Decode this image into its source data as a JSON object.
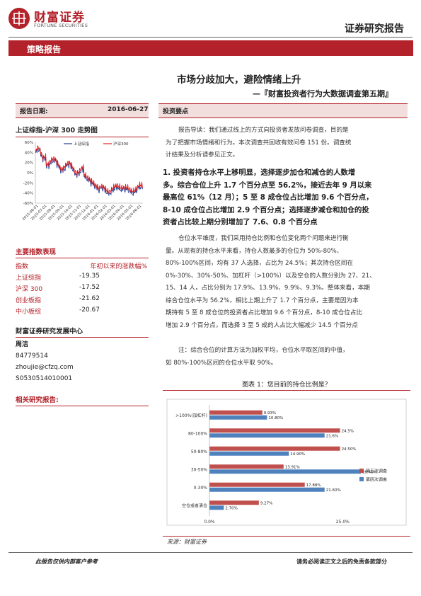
{
  "header": {
    "company_cn": "财富证券",
    "company_en": "FORTUNE SECURITIES",
    "report_type": "证券研究报告"
  },
  "banner": {
    "label": "策略报告"
  },
  "title": "市场分歧加大，避险情绪上升",
  "subtitle": "—『财富投资者行为大数据调查第五期』",
  "sidebar": {
    "date_label": "报告日期:",
    "date_value": "2016-06-27",
    "trend_title": "上证综指-沪深 300 走势图",
    "trend_chart": {
      "legend": [
        "上证综指",
        "沪深300"
      ],
      "yticks": [
        "60%",
        "40%",
        "20%",
        "0%",
        "-20%",
        "-40%",
        "-60%"
      ],
      "xticks": [
        "2015-06-01",
        "2015-07-01",
        "2015-08-01",
        "2015-09-01",
        "2015-10-01",
        "2015-11-01",
        "2015-12-01",
        "2016-01-01",
        "2016-02-01",
        "2016-03-01",
        "2016-04-01",
        "2016-05-01",
        "2016-06-01"
      ],
      "colors": {
        "sh": "#1f3f9a",
        "hs300": "#e02020"
      }
    },
    "indices": {
      "title": "主要指数表现",
      "header": [
        "指数",
        "年初以来的涨跌幅%"
      ],
      "rows": [
        {
          "name": "上证综指",
          "value": "-19.35"
        },
        {
          "name": "沪深 300",
          "value": "-17.52"
        },
        {
          "name": "创业板指",
          "value": "-21.62"
        },
        {
          "name": "中小板综",
          "value": "-20.67"
        }
      ]
    },
    "center": {
      "title": "财富证券研究发展中心",
      "lines": [
        "周洁",
        "84779514",
        "zhoujie@cfzq.com",
        "S0530514010001"
      ]
    },
    "related": {
      "title": "相关研究报告:"
    }
  },
  "main": {
    "section_label": "投资要点",
    "intro": [
      "报告导读：我们通过线上的方式向投资者发放问卷调查，目的是",
      "为了把握市场情绪和行为。本次调查共回收有效问卷 151 份。调查统",
      "计结果及分析请参见正文。"
    ],
    "point1": [
      "1. 投资者持仓水平上移明显，选择逐步加仓和减仓的人数增",
      "多。综合仓位上升 1.7 个百分点至 56.2%，接近去年 9 月以来",
      "最高位 61%（12 月）；5 至 8 成仓位占比增加 9.6 个百分点，",
      "8-10 成仓位占比增加 2.9 个百分点；选择逐步减仓和加仓的投",
      "资者占比较上期分别增加了 7.6、0.8 个百分点"
    ],
    "body": [
      "仓位水平维度，我们采用持仓比例和仓位变化两个问题来进行衡",
      "量。从现有的持仓水平来看，持仓人数最多的仓位为 50%-80%、",
      "80%-100%区间，均有 37 人选择，占比为 24.5%；其次持仓区间在",
      "0%-30%、30%-50%、加杠杆（>100%）以及空仓的人数分别为 27、21、",
      "15、14 人，占比分别为 17.9%、13.9%、9.9%、9.3%。整体来看，本期",
      "综合仓位水平为 56.2%，相比上期上升了 1.7 个百分点，主要是因为本",
      "期持有 5 至 8 成仓位的投资者占比增加 9.6 个百分点，8-10 成仓位占比",
      "增加 2.9 个百分点，而选择 3 至 5 成的人占比大幅减少 14.5 个百分点"
    ],
    "note": [
      "注：综合仓位的计算方法为加权平均，仓位水平取区间的中值，",
      "如 80%-100%区间的仓位水平取 90%。"
    ],
    "figure_caption": "图表 1：您目前的持仓比例是？",
    "source": "来源：财富证券"
  },
  "chart_data": {
    "type": "bar",
    "orientation": "horizontal",
    "categories": [
      ">100%(加杠杆)",
      "80-100%",
      "50-80%",
      "30-50%",
      "0-30%",
      "空仓或者清仓"
    ],
    "series": [
      {
        "name": "第五次调查",
        "color": "#c0504d",
        "values": [
          9.93,
          24.5,
          24.5,
          13.91,
          17.88,
          9.27
        ],
        "labels": [
          "9.93%",
          "24.5%",
          "24.50%",
          "13.91%",
          "17.88%",
          "9.27%"
        ]
      },
      {
        "name": "第四次调查",
        "color": "#4f81bd",
        "values": [
          10.8,
          21.6,
          14.9,
          28.4,
          21.6,
          2.7
        ],
        "labels": [
          "10.80%",
          "21.6%",
          "14.90%",
          "28.40%",
          "21.60%",
          "2.70%"
        ]
      }
    ],
    "xticks": [
      "0.0%",
      "25.0%"
    ],
    "xlim": [
      0,
      30
    ],
    "legend_position": "right"
  },
  "footer": {
    "left": "此报告仅供内部客户参考",
    "right": "请务必阅读正文之后的免责条款部分"
  }
}
